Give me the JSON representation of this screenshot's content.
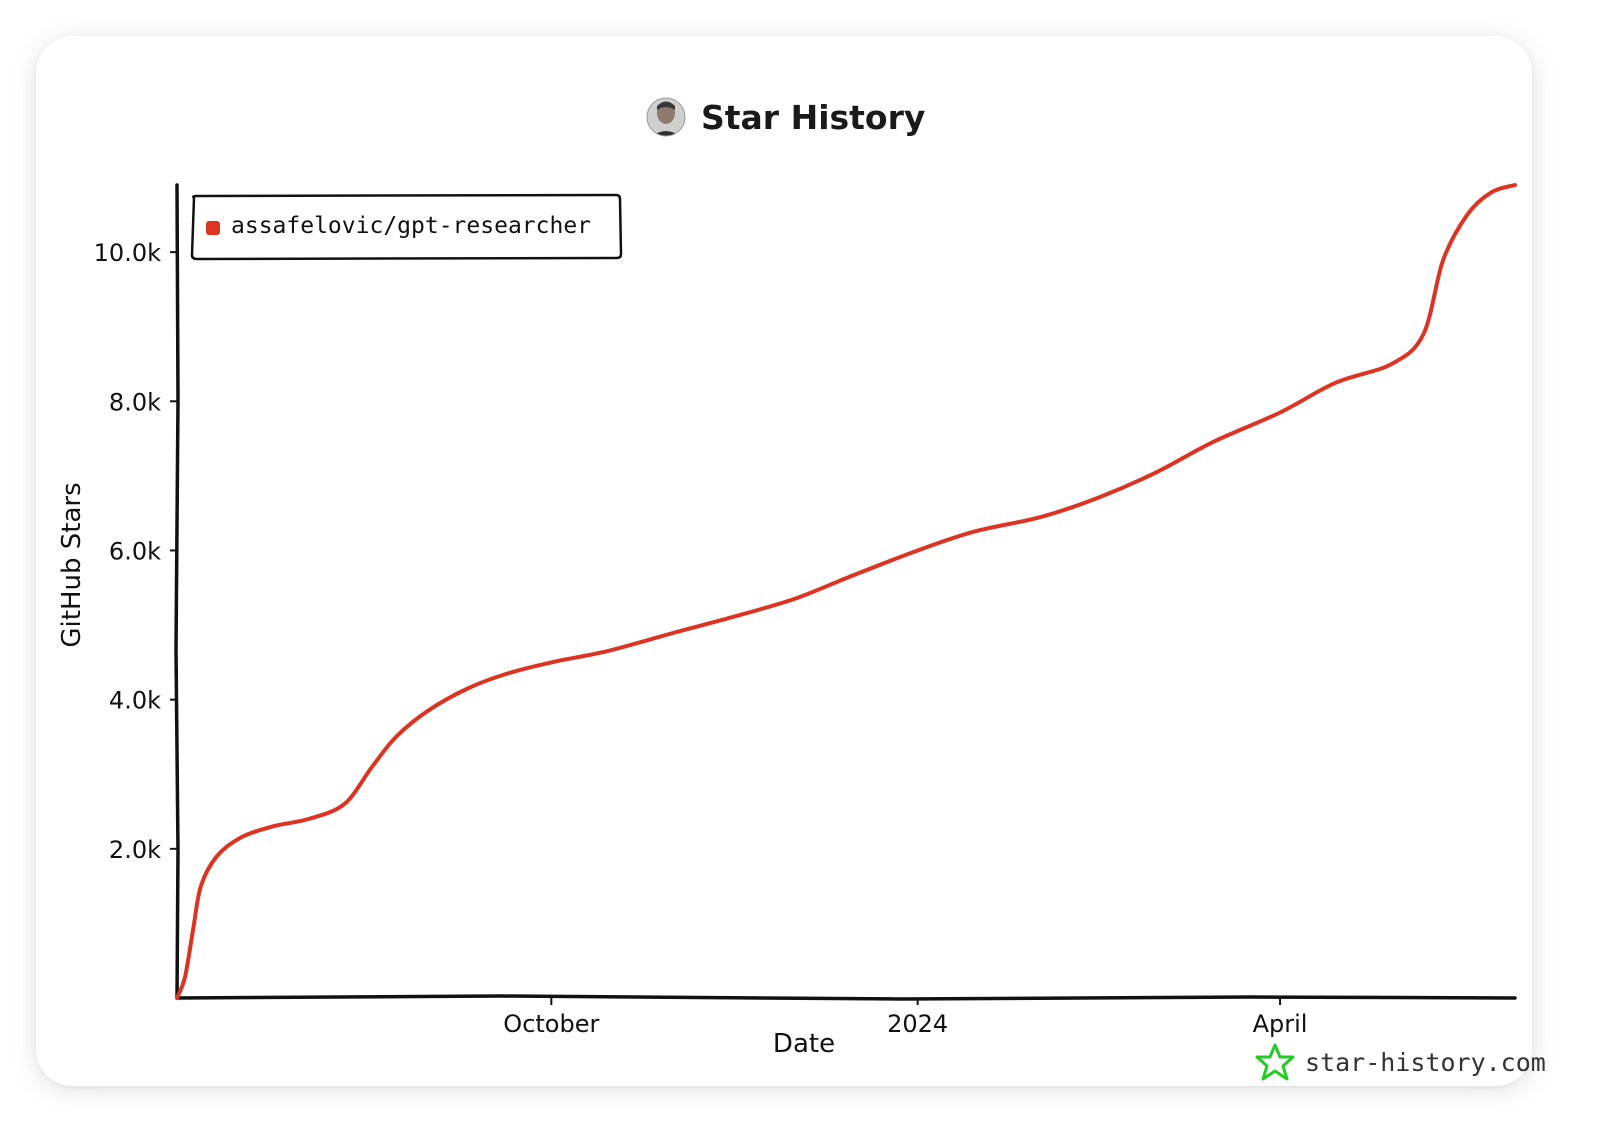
{
  "colors": {
    "series": "#dd3322",
    "axis": "#111111",
    "watermark_icon": "#22cc22"
  },
  "icons": {
    "title_avatar": "avatar-icon",
    "watermark": "star-icon"
  },
  "chart_data": {
    "type": "line",
    "title": "Star History",
    "xlabel": "Date",
    "ylabel": "GitHub Stars",
    "grid": false,
    "legend_position": "top-left",
    "x_domain": [
      "2023-06-29",
      "2024-05-30"
    ],
    "ylim": [
      0,
      10900
    ],
    "x_ticks": [
      {
        "date": "2023-10-01",
        "label": "October"
      },
      {
        "date": "2024-01-01",
        "label": "2024"
      },
      {
        "date": "2024-04-01",
        "label": "April"
      }
    ],
    "y_ticks": [
      {
        "value": 2000,
        "label": "2.0k"
      },
      {
        "value": 4000,
        "label": "4.0k"
      },
      {
        "value": 6000,
        "label": "6.0k"
      },
      {
        "value": 8000,
        "label": "8.0k"
      },
      {
        "value": 10000,
        "label": "10.0k"
      }
    ],
    "series": [
      {
        "name": "assafelovic/gpt-researcher",
        "color": "#dd3322",
        "points": [
          [
            "2023-06-29",
            0
          ],
          [
            "2023-07-01",
            280
          ],
          [
            "2023-07-03",
            900
          ],
          [
            "2023-07-05",
            1500
          ],
          [
            "2023-07-09",
            1900
          ],
          [
            "2023-07-15",
            2150
          ],
          [
            "2023-07-23",
            2300
          ],
          [
            "2023-08-01",
            2400
          ],
          [
            "2023-08-10",
            2600
          ],
          [
            "2023-08-17",
            3100
          ],
          [
            "2023-08-23",
            3500
          ],
          [
            "2023-08-31",
            3850
          ],
          [
            "2023-09-10",
            4150
          ],
          [
            "2023-09-20",
            4350
          ],
          [
            "2023-10-01",
            4500
          ],
          [
            "2023-10-15",
            4650
          ],
          [
            "2023-11-01",
            4900
          ],
          [
            "2023-11-15",
            5100
          ],
          [
            "2023-12-01",
            5350
          ],
          [
            "2023-12-15",
            5650
          ],
          [
            "2024-01-01",
            6000
          ],
          [
            "2024-01-15",
            6250
          ],
          [
            "2024-02-01",
            6450
          ],
          [
            "2024-02-15",
            6700
          ],
          [
            "2024-03-01",
            7050
          ],
          [
            "2024-03-15",
            7450
          ],
          [
            "2024-04-01",
            7850
          ],
          [
            "2024-04-15",
            8250
          ],
          [
            "2024-04-29",
            8500
          ],
          [
            "2024-05-07",
            8900
          ],
          [
            "2024-05-12",
            9900
          ],
          [
            "2024-05-18",
            10500
          ],
          [
            "2024-05-24",
            10800
          ],
          [
            "2024-05-30",
            10900
          ]
        ]
      }
    ]
  },
  "watermark": {
    "text": "star-history.com"
  }
}
